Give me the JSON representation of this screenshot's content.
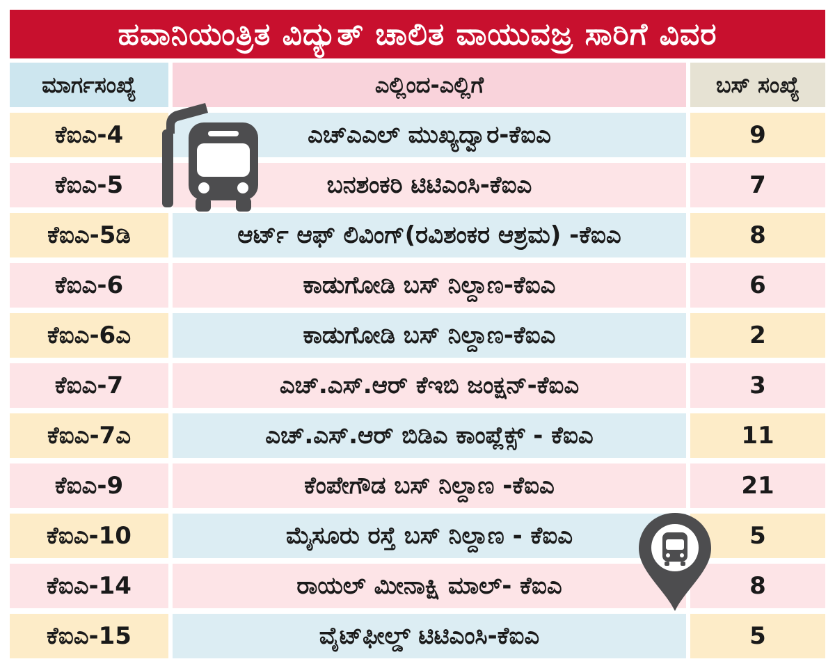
{
  "title": "ಹವಾನಿಯಂತ್ರಿತ ವಿದ್ಯುತ್ ಚಾಲಿತ ವಾಯುವಜ್ರ ಸಾರಿಗೆ ವಿವರ",
  "headers": {
    "route": "ಮಾರ್ಗಸಂಖ್ಯೆ",
    "from_to": "ಎಲ್ಲಿಂದ-ಎಲ್ಲಿಗೆ",
    "bus_count": "ಬಸ್  ಸಂಖ್ಯೆ"
  },
  "rows": [
    {
      "route": "ಕೆಐಎ-4",
      "from_to": "ಎಚ್‌ಎಎಲ್ ಮುಖ್ಯದ್ವಾರ-ಕೆಐಎ",
      "buses": "9"
    },
    {
      "route": "ಕೆಐಎ-5",
      "from_to": "ಬನಶಂಕರಿ ಟಿಟಿಎಂಸಿ-ಕೆಐಎ",
      "buses": "7"
    },
    {
      "route": "ಕೆಐಎ-5ಡಿ",
      "from_to": "ಆರ್ಟ್ ಆಫ್ ಲಿವಿಂಗ್(ರವಿಶಂಕರ ಆಶ್ರಮ) -ಕೆಐಎ",
      "buses": "8"
    },
    {
      "route": "ಕೆಐಎ-6",
      "from_to": "ಕಾಡುಗೋಡಿ ಬಸ್ ನಿಲ್ದಾಣ-ಕೆಐಎ",
      "buses": "6"
    },
    {
      "route": "ಕೆಐಎ-6ಎ",
      "from_to": "ಕಾಡುಗೋಡಿ ಬಸ್ ನಿಲ್ದಾಣ-ಕೆಐಎ",
      "buses": "2"
    },
    {
      "route": "ಕೆಐಎ-7",
      "from_to": "ಎಚ್.ಎಸ್.ಆರ್ ಕೆಇಬಿ ಜಂಕ್ಷನ್-ಕೆಐಎ",
      "buses": "3"
    },
    {
      "route": "ಕೆಐಎ-7ಎ",
      "from_to": "ಎಚ್.ಎಸ್.ಆರ್ ಬಿಡಿಎ ಕಾಂಪ್ಲೆಕ್ಸ್ - ಕೆಐಎ",
      "buses": "11"
    },
    {
      "route": "ಕೆಐಎ-9",
      "from_to": "ಕೆಂಪೇಗೌಡ ಬಸ್ ನಿಲ್ದಾಣ -ಕೆಐಎ",
      "buses": "21"
    },
    {
      "route": "ಕೆಐಎ-10",
      "from_to": "ಮೈಸೂರು ರಸ್ತೆ ಬಸ್ ನಿಲ್ದಾಣ - ಕೆಐಎ",
      "buses": "5"
    },
    {
      "route": "ಕೆಐಎ-14",
      "from_to": "ರಾಯಲ್ ಮೀನಾಕ್ಷಿ ಮಾಲ್- ಕೆಐಎ",
      "buses": "8"
    },
    {
      "route": "ಕೆಐಎ-15",
      "from_to": "ವೈಟ್‌ಫೀಲ್ಡ್ ಟಿಟಿಎಂಸಿ-ಕೆಐಎ",
      "buses": "5"
    }
  ],
  "colors": {
    "title_bg": "#c8102e",
    "header_route_bg": "#cde6ef",
    "header_fromto_bg": "#f9d3db",
    "header_count_bg": "#e6e2d3",
    "row_pink": "#fde4e7",
    "row_yellow": "#fdecc8",
    "row_blue": "#dcedf3",
    "icon_gray": "#4d4d4f"
  },
  "icons": {
    "bus_stop": "bus-stop-icon",
    "location_pin": "bus-location-pin-icon"
  }
}
